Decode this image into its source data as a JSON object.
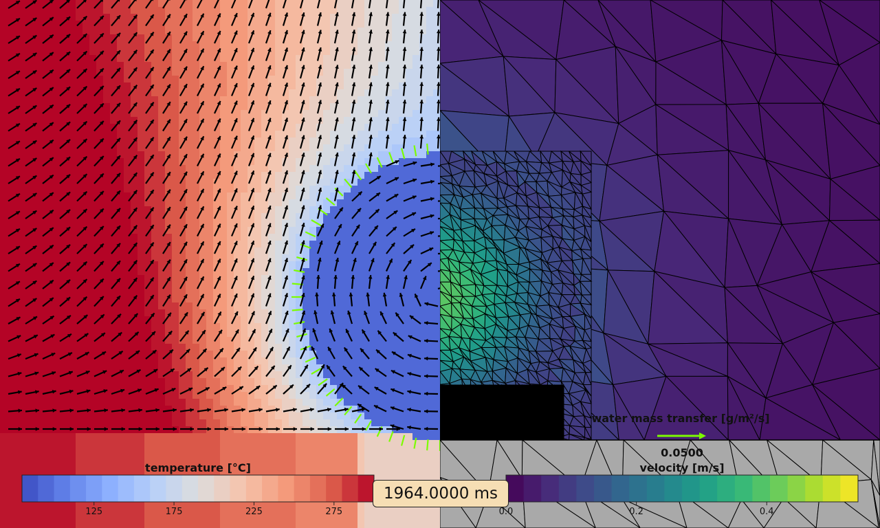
{
  "time_label": "1964.0000 ms",
  "colors": {
    "ground": "#a9a9a9",
    "quiver": "#000000",
    "mass_quiver": "#7cfc00",
    "mesh_line": "#000000"
  },
  "chart_data": [
    {
      "type": "heatmap",
      "name": "temperature field (left half)",
      "colorbar": {
        "label": "temperature [°C]",
        "colormap": "coolwarm",
        "range": [
          80,
          300
        ],
        "ticks": [
          125,
          175,
          225,
          275
        ],
        "levels": 22
      },
      "vector_field": "velocity"
    },
    {
      "type": "heatmap",
      "name": "velocity magnitude on mesh (right half)",
      "colorbar": {
        "label": "velocity [m/s]",
        "colormap": "viridis",
        "range": [
          0.0,
          0.54
        ],
        "ticks": [
          0.0,
          0.2,
          0.4
        ],
        "tick_labels": [
          "0.0",
          "0.2",
          "0.4"
        ],
        "levels": 20
      },
      "mesh": "triangular"
    },
    {
      "type": "scatter",
      "name": "water mass transfer quiver key",
      "label": "water mass transfer [g/m²/s]",
      "key_value": "0.0500"
    }
  ]
}
